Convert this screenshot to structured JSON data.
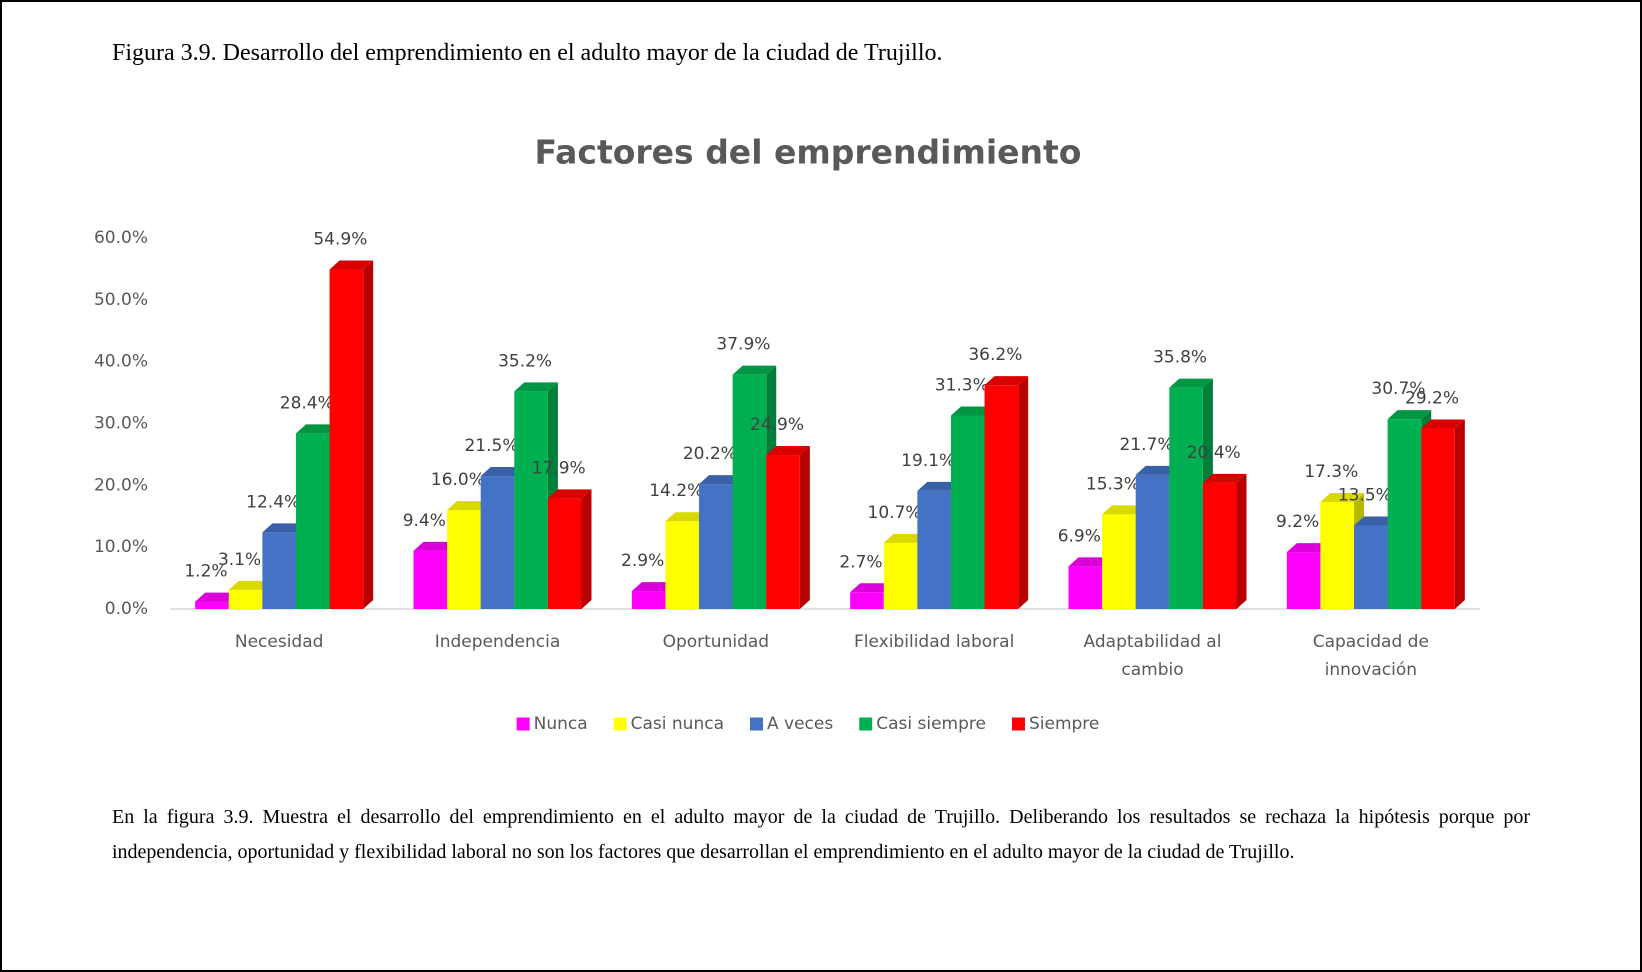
{
  "caption": "Figura 3.9. Desarrollo del emprendimiento en el adulto mayor de la ciudad de Trujillo.",
  "chart_data": {
    "type": "bar3d",
    "title": "Factores del emprendimiento",
    "categories": [
      "Necesidad",
      "Independencia",
      "Oportunidad",
      "Flexibilidad laboral",
      "Adaptabilidad al cambio",
      "Capacidad de innovación"
    ],
    "series": [
      {
        "name": "Nunca",
        "color": "#ff00ff",
        "values": [
          1.2,
          9.4,
          2.9,
          2.7,
          6.9,
          9.2
        ],
        "value_labels": [
          "1.2%",
          "9.4%",
          "2.9%",
          "2.7%",
          "6.9%",
          "9.2%"
        ]
      },
      {
        "name": "Casi nunca",
        "color": "#ffff00",
        "values": [
          3.1,
          16.0,
          14.2,
          10.7,
          15.3,
          17.3
        ],
        "value_labels": [
          "3.1%",
          "16.0%",
          "14.2%",
          "10.7%",
          "15.3%",
          "17.3%"
        ]
      },
      {
        "name": "A veces",
        "color": "#4472c4",
        "values": [
          12.4,
          21.5,
          20.2,
          19.1,
          21.7,
          13.5
        ],
        "value_labels": [
          "12.4%",
          "21.5%",
          "20.2%",
          "19.1%",
          "21.7%",
          "13.5%"
        ]
      },
      {
        "name": "Casi siempre",
        "color": "#00b050",
        "values": [
          28.4,
          35.2,
          37.9,
          31.3,
          35.8,
          30.7
        ],
        "value_labels": [
          "28.4%",
          "35.2%",
          "37.9%",
          "31.3%",
          "35.8%",
          "30.7%"
        ]
      },
      {
        "name": "Siempre",
        "color": "#ff0000",
        "values": [
          54.9,
          17.9,
          24.9,
          36.2,
          20.4,
          29.2
        ],
        "value_labels": [
          "54.9%",
          "17.9%",
          "24.9%",
          "36.2%",
          "20.4%",
          "29.2%"
        ]
      }
    ],
    "ylim": [
      0,
      60
    ],
    "yticks": [
      {
        "value": 0,
        "label": "0.0%"
      },
      {
        "value": 10,
        "label": "10.0%"
      },
      {
        "value": 20,
        "label": "20.0%"
      },
      {
        "value": 30,
        "label": "30.0%"
      },
      {
        "value": 40,
        "label": "40.0%"
      },
      {
        "value": 50,
        "label": "50.0%"
      },
      {
        "value": 60,
        "label": "60.0%"
      }
    ],
    "legend": "bottom"
  },
  "body_text": "En la figura 3.9. Muestra el desarrollo del emprendimiento en el adulto mayor de la ciudad de Trujillo. Deliberando los resultados se rechaza la hipótesis porque por independencia, oportunidad y flexibilidad laboral no son los factores que desarrollan el emprendimiento en el adulto mayor de la ciudad de Trujillo."
}
